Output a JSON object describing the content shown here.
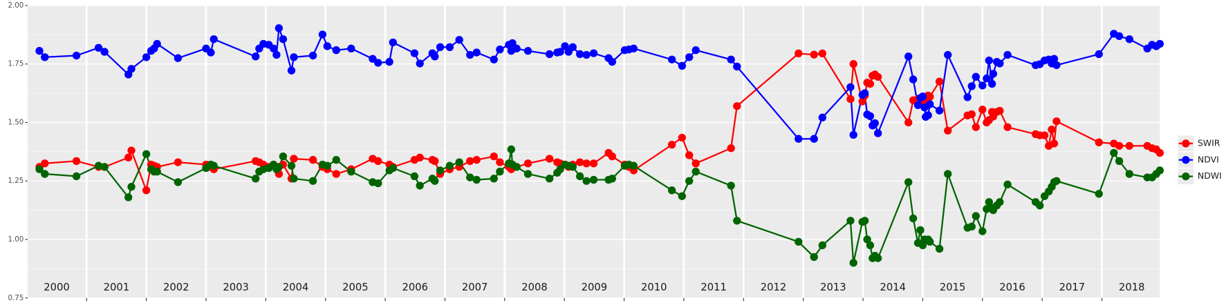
{
  "chart_data": {
    "type": "line",
    "x": [
      2000.21,
      2000.3,
      2000.83,
      2001.2,
      2001.3,
      2001.7,
      2001.75,
      2002.0,
      2002.08,
      2002.13,
      2002.18,
      2002.53,
      2003.0,
      2003.08,
      2003.13,
      2003.83,
      2003.89,
      2003.96,
      2004.05,
      2004.13,
      2004.18,
      2004.22,
      2004.29,
      2004.43,
      2004.47,
      2004.79,
      2004.95,
      2005.03,
      2005.18,
      2005.43,
      2005.79,
      2005.88,
      2006.07,
      2006.13,
      2006.49,
      2006.58,
      2006.79,
      2006.83,
      2006.92,
      2007.08,
      2007.24,
      2007.42,
      2007.53,
      2007.82,
      2007.92,
      2008.07,
      2008.11,
      2008.13,
      2008.2,
      2008.39,
      2008.75,
      2008.88,
      2008.93,
      2009.01,
      2009.07,
      2009.14,
      2009.26,
      2009.37,
      2009.49,
      2009.74,
      2009.8,
      2010.01,
      2010.08,
      2010.16,
      2010.8,
      2010.97,
      2011.09,
      2011.2,
      2011.79,
      2011.89,
      2012.92,
      2013.18,
      2013.32,
      2013.79,
      2013.84,
      2013.99,
      2014.03,
      2014.07,
      2014.12,
      2014.16,
      2014.2,
      2014.25,
      2014.76,
      2014.84,
      2014.92,
      2014.96,
      2015.0,
      2015.03,
      2015.05,
      2015.09,
      2015.12,
      2015.28,
      2015.42,
      2015.75,
      2015.82,
      2015.89,
      2016.0,
      2016.07,
      2016.11,
      2016.16,
      2016.18,
      2016.24,
      2016.29,
      2016.42,
      2016.89,
      2016.96,
      2017.04,
      2017.11,
      2017.16,
      2017.2,
      2017.24,
      2017.95,
      2018.2,
      2018.29,
      2018.46,
      2018.76,
      2018.84,
      2018.91,
      2018.97
    ],
    "series": [
      {
        "name": "SWIR",
        "color": "#ff0000",
        "values": [
          1.31,
          1.325,
          1.335,
          1.31,
          1.31,
          1.35,
          1.38,
          1.21,
          1.32,
          1.315,
          1.31,
          1.33,
          1.32,
          1.31,
          1.3,
          1.335,
          1.33,
          1.32,
          1.31,
          1.32,
          1.31,
          1.28,
          1.32,
          1.26,
          1.345,
          1.34,
          1.31,
          1.3,
          1.28,
          1.3,
          1.345,
          1.335,
          1.32,
          1.31,
          1.34,
          1.35,
          1.34,
          1.335,
          1.28,
          1.3,
          1.31,
          1.335,
          1.34,
          1.355,
          1.33,
          1.31,
          1.3,
          1.32,
          1.31,
          1.325,
          1.345,
          1.33,
          1.325,
          1.32,
          1.31,
          1.32,
          1.33,
          1.325,
          1.325,
          1.37,
          1.355,
          1.32,
          1.31,
          1.295,
          1.405,
          1.435,
          1.36,
          1.325,
          1.39,
          1.57,
          1.795,
          1.79,
          1.795,
          1.6,
          1.75,
          1.59,
          1.615,
          1.67,
          1.665,
          1.7,
          1.705,
          1.695,
          1.5,
          1.595,
          1.6,
          1.58,
          1.6,
          1.59,
          1.605,
          1.615,
          1.61,
          1.675,
          1.465,
          1.53,
          1.535,
          1.48,
          1.555,
          1.5,
          1.51,
          1.545,
          1.525,
          1.545,
          1.55,
          1.48,
          1.45,
          1.445,
          1.445,
          1.4,
          1.47,
          1.41,
          1.505,
          1.415,
          1.41,
          1.4,
          1.4,
          1.4,
          1.39,
          1.385,
          1.37
        ]
      },
      {
        "name": "NDVI",
        "color": "#0000ff",
        "values": [
          1.806,
          1.779,
          1.786,
          1.819,
          1.802,
          1.705,
          1.729,
          1.779,
          1.806,
          1.816,
          1.836,
          1.775,
          1.816,
          1.799,
          1.856,
          1.782,
          1.816,
          1.836,
          1.832,
          1.816,
          1.789,
          1.903,
          1.856,
          1.722,
          1.779,
          1.786,
          1.876,
          1.826,
          1.809,
          1.816,
          1.772,
          1.755,
          1.759,
          1.842,
          1.796,
          1.752,
          1.796,
          1.782,
          1.822,
          1.822,
          1.853,
          1.789,
          1.799,
          1.769,
          1.812,
          1.832,
          1.806,
          1.839,
          1.816,
          1.806,
          1.792,
          1.799,
          1.802,
          1.826,
          1.802,
          1.822,
          1.792,
          1.789,
          1.796,
          1.775,
          1.759,
          1.809,
          1.812,
          1.816,
          1.769,
          1.742,
          1.779,
          1.809,
          1.769,
          1.739,
          1.43,
          1.43,
          1.521,
          1.651,
          1.447,
          1.618,
          1.625,
          1.534,
          1.527,
          1.487,
          1.497,
          1.454,
          1.782,
          1.684,
          1.574,
          1.605,
          1.611,
          1.564,
          1.524,
          1.531,
          1.578,
          1.551,
          1.789,
          1.608,
          1.655,
          1.695,
          1.658,
          1.688,
          1.765,
          1.665,
          1.708,
          1.759,
          1.752,
          1.789,
          1.745,
          1.749,
          1.765,
          1.769,
          1.752,
          1.772,
          1.745,
          1.792,
          1.879,
          1.869,
          1.856,
          1.816,
          1.832,
          1.826,
          1.836
        ]
      },
      {
        "name": "NDWI",
        "color": "#006400",
        "values": [
          1.3,
          1.28,
          1.27,
          1.315,
          1.31,
          1.18,
          1.225,
          1.365,
          1.3,
          1.29,
          1.29,
          1.245,
          1.305,
          1.32,
          1.315,
          1.26,
          1.29,
          1.3,
          1.305,
          1.32,
          1.3,
          1.31,
          1.355,
          1.315,
          1.26,
          1.25,
          1.32,
          1.315,
          1.34,
          1.29,
          1.245,
          1.24,
          1.295,
          1.305,
          1.27,
          1.23,
          1.26,
          1.25,
          1.295,
          1.315,
          1.33,
          1.265,
          1.255,
          1.26,
          1.29,
          1.325,
          1.385,
          1.32,
          1.31,
          1.28,
          1.26,
          1.285,
          1.3,
          1.32,
          1.315,
          1.31,
          1.27,
          1.25,
          1.255,
          1.255,
          1.26,
          1.315,
          1.32,
          1.315,
          1.21,
          1.185,
          1.25,
          1.29,
          1.23,
          1.08,
          0.99,
          0.925,
          0.975,
          1.08,
          0.9,
          1.075,
          1.08,
          1.0,
          0.975,
          0.92,
          0.93,
          0.92,
          1.245,
          1.09,
          0.985,
          1.04,
          0.975,
          1.0,
          0.995,
          1.0,
          0.99,
          0.96,
          1.28,
          1.05,
          1.055,
          1.1,
          1.035,
          1.13,
          1.16,
          1.135,
          1.125,
          1.145,
          1.16,
          1.235,
          1.16,
          1.145,
          1.185,
          1.205,
          1.225,
          1.245,
          1.25,
          1.195,
          1.37,
          1.335,
          1.28,
          1.265,
          1.265,
          1.28,
          1.295
        ]
      }
    ],
    "xlim": [
      2000,
      2018.97
    ],
    "xticks": [
      {
        "value": 2000.5,
        "label": "2000"
      },
      {
        "value": 2001.5,
        "label": "2001"
      },
      {
        "value": 2002.5,
        "label": "2002"
      },
      {
        "value": 2003.5,
        "label": "2003"
      },
      {
        "value": 2004.5,
        "label": "2004"
      },
      {
        "value": 2005.5,
        "label": "2005"
      },
      {
        "value": 2006.5,
        "label": "2006"
      },
      {
        "value": 2007.5,
        "label": "2007"
      },
      {
        "value": 2008.5,
        "label": "2008"
      },
      {
        "value": 2009.5,
        "label": "2009"
      },
      {
        "value": 2010.5,
        "label": "2010"
      },
      {
        "value": 2011.5,
        "label": "2011"
      },
      {
        "value": 2012.5,
        "label": "2012"
      },
      {
        "value": 2013.5,
        "label": "2013"
      },
      {
        "value": 2014.5,
        "label": "2014"
      },
      {
        "value": 2015.5,
        "label": "2015"
      },
      {
        "value": 2016.5,
        "label": "2016"
      },
      {
        "value": 2017.5,
        "label": "2017"
      },
      {
        "value": 2018.5,
        "label": "2018"
      }
    ],
    "xgrid": [
      2001,
      2002,
      2003,
      2004,
      2005,
      2006,
      2007,
      2008,
      2009,
      2010,
      2011,
      2012,
      2013,
      2014,
      2015,
      2016,
      2017,
      2018
    ],
    "ylim": [
      0.75,
      2.0
    ],
    "yticks": [
      {
        "value": 0.75,
        "label": "0.75"
      },
      {
        "value": 1.0,
        "label": "1.00"
      },
      {
        "value": 1.25,
        "label": "1.25"
      },
      {
        "value": 1.5,
        "label": "1.50"
      },
      {
        "value": 1.75,
        "label": "1.75"
      },
      {
        "value": 2.0,
        "label": "2.00"
      }
    ],
    "grid": true,
    "legend": "right"
  }
}
